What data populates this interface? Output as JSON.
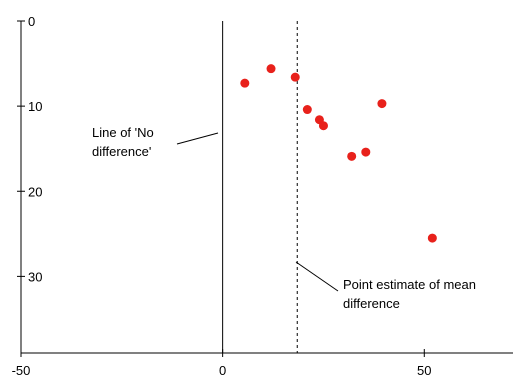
{
  "chart_data": {
    "type": "scatter",
    "title": "",
    "xlabel": "",
    "ylabel": "",
    "xlim": [
      -50,
      72
    ],
    "ylim": [
      0,
      39
    ],
    "y_inverted": true,
    "x_ticks": [
      -50,
      0,
      50
    ],
    "x_tick_labels": [
      "-50",
      "0",
      "50"
    ],
    "y_ticks": [
      0,
      10,
      20,
      30
    ],
    "y_tick_labels": [
      "0",
      "10",
      "20",
      "30"
    ],
    "grid": false,
    "legend": "none",
    "marker_color": "#e8211b",
    "series": [
      {
        "points": [
          {
            "x": 5.5,
            "y": 7.3
          },
          {
            "x": 12,
            "y": 5.6
          },
          {
            "x": 18,
            "y": 6.6
          },
          {
            "x": 21,
            "y": 10.4
          },
          {
            "x": 24,
            "y": 11.6
          },
          {
            "x": 25,
            "y": 12.3
          },
          {
            "x": 32,
            "y": 15.9
          },
          {
            "x": 35.5,
            "y": 15.4
          },
          {
            "x": 39.5,
            "y": 9.7
          },
          {
            "x": 52,
            "y": 25.5
          }
        ]
      }
    ],
    "reference_lines": [
      {
        "x": 0,
        "style": "solid"
      },
      {
        "x": 18.5,
        "style": "dashed"
      }
    ],
    "annotations": [
      {
        "lines": [
          "Line of 'No",
          "difference'"
        ],
        "points_to": "solid line at x = 0"
      },
      {
        "lines": [
          "Point estimate of mean",
          "difference"
        ],
        "points_to": "dashed line at x = 18.5"
      }
    ]
  }
}
